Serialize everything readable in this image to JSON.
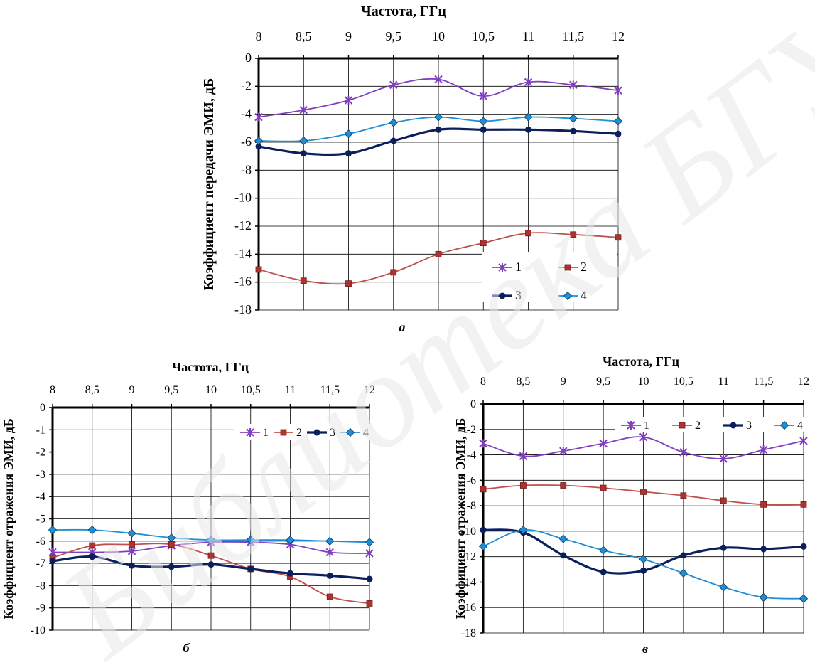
{
  "colors": {
    "s1": "#7F3FBF",
    "s2": "#C0504D",
    "s2_marker": "#B3312D",
    "s3": "#0B1F5C",
    "s4": "#1F8ED6",
    "grid": "#000000",
    "watermark": "#E8E8E8"
  },
  "watermark": {
    "text": "Библиотека БГУИР"
  },
  "chart_data": [
    {
      "id": "a",
      "type": "line",
      "caption": "а",
      "xlabel": "Частота, ГГц",
      "ylabel": "Коэффициент передачи  ЭМИ, дБ",
      "x": [
        8,
        8.5,
        9,
        9.5,
        10,
        10.5,
        11,
        11.5,
        12
      ],
      "xtick_labels": [
        "8",
        "8,5",
        "9",
        "9,5",
        "10",
        "10,5",
        "11",
        "11,5",
        "12"
      ],
      "ylim": [
        -18,
        0
      ],
      "ytick_labels": [
        "0",
        "-2",
        "-4",
        "-6",
        "-8",
        "-10",
        "-12",
        "-14",
        "-16",
        "-18"
      ],
      "x_axis_position": "top",
      "grid": true,
      "legend_position": "bottom-right",
      "series": [
        {
          "name": "1",
          "marker": "star",
          "color_key": "s1",
          "values": [
            -4.2,
            -3.7,
            -3.0,
            -1.9,
            -1.5,
            -2.7,
            -1.7,
            -1.9,
            -2.3
          ]
        },
        {
          "name": "2",
          "marker": "square",
          "color_key": "s2",
          "values": [
            -15.1,
            -15.9,
            -16.1,
            -15.3,
            -14.0,
            -13.2,
            -12.5,
            -12.6,
            -12.8
          ]
        },
        {
          "name": "3",
          "marker": "circle",
          "color_key": "s3",
          "values": [
            -6.3,
            -6.8,
            -6.8,
            -5.9,
            -5.1,
            -5.1,
            -5.1,
            -5.2,
            -5.4
          ]
        },
        {
          "name": "4",
          "marker": "diamond",
          "color_key": "s4",
          "values": [
            -5.9,
            -5.9,
            -5.4,
            -4.6,
            -4.2,
            -4.5,
            -4.2,
            -4.3,
            -4.5
          ]
        }
      ]
    },
    {
      "id": "b",
      "type": "line",
      "caption": "б",
      "xlabel": "Частота, ГГц",
      "ylabel": "Коэффициент отражения  ЭМИ, дБ",
      "x": [
        8,
        8.5,
        9,
        9.5,
        10,
        10.5,
        11,
        11.5,
        12
      ],
      "xtick_labels": [
        "8",
        "8,5",
        "9",
        "9,5",
        "10",
        "10,5",
        "11",
        "11,5",
        "12"
      ],
      "ylim": [
        -10,
        0
      ],
      "ytick_labels": [
        "0",
        "-1",
        "-2",
        "-3",
        "-4",
        "-5",
        "-6",
        "-7",
        "-8",
        "-9",
        "-10"
      ],
      "x_axis_position": "top",
      "grid": true,
      "legend_position": "top-right",
      "series": [
        {
          "name": "1",
          "marker": "star",
          "color_key": "s1",
          "values": [
            -6.5,
            -6.5,
            -6.45,
            -6.2,
            -6.05,
            -6.05,
            -6.15,
            -6.5,
            -6.55
          ]
        },
        {
          "name": "2",
          "marker": "square",
          "color_key": "s2",
          "values": [
            -6.75,
            -6.2,
            -6.15,
            -6.15,
            -6.65,
            -7.25,
            -7.6,
            -8.5,
            -8.8
          ]
        },
        {
          "name": "3",
          "marker": "circle",
          "color_key": "s3",
          "values": [
            -6.9,
            -6.7,
            -7.1,
            -7.15,
            -7.05,
            -7.25,
            -7.45,
            -7.55,
            -7.7
          ]
        },
        {
          "name": "4",
          "marker": "diamond",
          "color_key": "s4",
          "values": [
            -5.5,
            -5.5,
            -5.65,
            -5.85,
            -5.95,
            -5.95,
            -5.95,
            -6.0,
            -6.05
          ]
        }
      ]
    },
    {
      "id": "c",
      "type": "line",
      "caption": "в",
      "xlabel": "Частота, ГГц",
      "ylabel": "Коэффициент отражения  ЭМИ, дБ",
      "x": [
        8,
        8.5,
        9,
        9.5,
        10,
        10.5,
        11,
        11.5,
        12
      ],
      "xtick_labels": [
        "8",
        "8,5",
        "9",
        "9,5",
        "10",
        "10,5",
        "11",
        "11,5",
        "12"
      ],
      "ylim": [
        -18,
        0
      ],
      "ytick_labels": [
        "0",
        "-2",
        "-4",
        "-6",
        "-8",
        "-10",
        "-12",
        "-14",
        "-16",
        "-18"
      ],
      "x_axis_position": "top",
      "grid": true,
      "legend_position": "top-right",
      "series": [
        {
          "name": "1",
          "marker": "star",
          "color_key": "s1",
          "values": [
            -3.1,
            -4.1,
            -3.7,
            -3.1,
            -2.6,
            -3.8,
            -4.3,
            -3.6,
            -2.9
          ]
        },
        {
          "name": "2",
          "marker": "square",
          "color_key": "s2",
          "values": [
            -6.7,
            -6.4,
            -6.4,
            -6.6,
            -6.9,
            -7.2,
            -7.6,
            -7.9,
            -7.9
          ]
        },
        {
          "name": "3",
          "marker": "circle",
          "color_key": "s3",
          "values": [
            -9.9,
            -10.1,
            -11.9,
            -13.2,
            -13.1,
            -11.9,
            -11.3,
            -11.4,
            -11.2
          ]
        },
        {
          "name": "4",
          "marker": "diamond",
          "color_key": "s4",
          "values": [
            -11.2,
            -9.9,
            -10.6,
            -11.5,
            -12.2,
            -13.3,
            -14.4,
            -15.2,
            -15.3
          ]
        }
      ]
    }
  ]
}
